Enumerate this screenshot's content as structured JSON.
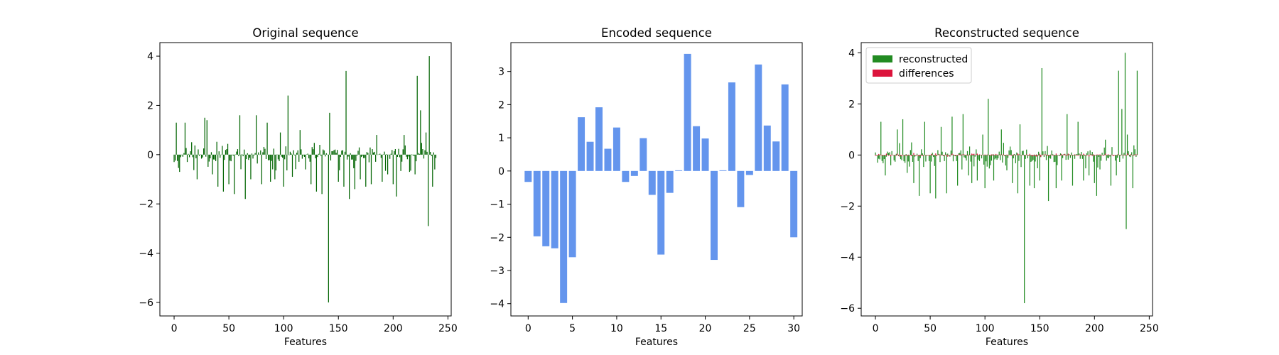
{
  "chart_data": [
    {
      "type": "bar",
      "title": "Original sequence",
      "xlabel": "Features",
      "ylabel": "",
      "xlim": [
        -13,
        253
      ],
      "ylim": [
        -6.55,
        4.55
      ],
      "xticks": [
        0,
        50,
        100,
        150,
        200,
        250
      ],
      "yticks": [
        -6,
        -4,
        -2,
        0,
        2,
        4
      ],
      "bar_width": 0.8,
      "color": "#006400",
      "spikes": [
        [
          0,
          -0.3
        ],
        [
          2,
          1.3
        ],
        [
          5,
          -0.7
        ],
        [
          10,
          1.3
        ],
        [
          21,
          -1.0
        ],
        [
          28,
          1.5
        ],
        [
          30,
          1.4
        ],
        [
          35,
          -0.8
        ],
        [
          40,
          -1.3
        ],
        [
          45,
          -1.5
        ],
        [
          50,
          -1.2
        ],
        [
          55,
          -1.6
        ],
        [
          60,
          1.6
        ],
        [
          65,
          -1.8
        ],
        [
          70,
          -1.0
        ],
        [
          75,
          1.6
        ],
        [
          80,
          -1.2
        ],
        [
          85,
          1.3
        ],
        [
          88,
          -1.1
        ],
        [
          92,
          -1.0
        ],
        [
          97,
          0.9
        ],
        [
          100,
          -1.3
        ],
        [
          104,
          2.4
        ],
        [
          108,
          -0.9
        ],
        [
          115,
          1.0
        ],
        [
          120,
          -0.6
        ],
        [
          125,
          -1.2
        ],
        [
          130,
          -1.5
        ],
        [
          135,
          -1.6
        ],
        [
          141,
          -6.0
        ],
        [
          142,
          1.7
        ],
        [
          150,
          -1.1
        ],
        [
          155,
          -1.3
        ],
        [
          157,
          3.4
        ],
        [
          160,
          -1.8
        ],
        [
          165,
          -1.4
        ],
        [
          170,
          -1.0
        ],
        [
          175,
          -1.3
        ],
        [
          180,
          -1.2
        ],
        [
          185,
          0.8
        ],
        [
          190,
          -1.1
        ],
        [
          195,
          -0.8
        ],
        [
          200,
          -1.2
        ],
        [
          203,
          -1.7
        ],
        [
          210,
          0.8
        ],
        [
          215,
          -0.7
        ],
        [
          220,
          -0.8
        ],
        [
          222,
          3.2
        ],
        [
          225,
          1.8
        ],
        [
          230,
          0.9
        ],
        [
          232,
          -2.9
        ],
        [
          233,
          4.0
        ],
        [
          236,
          -1.3
        ],
        [
          238,
          -0.6
        ]
      ]
    },
    {
      "type": "bar",
      "title": "Encoded sequence",
      "xlabel": "Features",
      "ylabel": "",
      "xlim": [
        -1.95,
        30.95
      ],
      "ylim": [
        -4.37,
        3.87
      ],
      "xticks": [
        0,
        5,
        10,
        15,
        20,
        25,
        30
      ],
      "yticks": [
        -4,
        -3,
        -2,
        -1,
        0,
        1,
        2,
        3
      ],
      "bar_width": 0.8,
      "color": "#6495ED",
      "categories": [
        0,
        1,
        2,
        3,
        4,
        5,
        6,
        7,
        8,
        9,
        10,
        11,
        12,
        13,
        14,
        15,
        16,
        17,
        18,
        19,
        20,
        21,
        22,
        23,
        24,
        25,
        26,
        27,
        28,
        29,
        30
      ],
      "values": [
        -0.33,
        -1.97,
        -2.27,
        -2.33,
        -3.98,
        -2.6,
        1.62,
        0.88,
        1.92,
        0.67,
        1.31,
        -0.33,
        -0.15,
        0.99,
        -0.72,
        -2.52,
        -0.66,
        0.02,
        3.53,
        1.35,
        0.98,
        -2.68,
        0.02,
        2.67,
        -1.09,
        -0.12,
        3.21,
        1.37,
        0.89,
        2.61,
        -2.0
      ]
    },
    {
      "type": "bar",
      "title": "Reconstructed sequence",
      "xlabel": "Features",
      "ylabel": "",
      "xlim": [
        -13,
        253
      ],
      "ylim": [
        -6.3,
        4.4
      ],
      "xticks": [
        0,
        50,
        100,
        150,
        200,
        250
      ],
      "yticks": [
        -6,
        -4,
        -2,
        0,
        2,
        4
      ],
      "bar_width": 0.8,
      "legend": "top-left",
      "series": [
        {
          "name": "reconstructed",
          "color": "#228B22",
          "spikes": [
            [
              0,
              0.1
            ],
            [
              2,
              -0.3
            ],
            [
              5,
              1.3
            ],
            [
              9,
              -0.8
            ],
            [
              14,
              -0.4
            ],
            [
              20,
              1.0
            ],
            [
              25,
              1.4
            ],
            [
              29,
              -0.7
            ],
            [
              35,
              -1.1
            ],
            [
              40,
              -1.6
            ],
            [
              45,
              1.3
            ],
            [
              50,
              -1.5
            ],
            [
              55,
              -1.7
            ],
            [
              60,
              1.1
            ],
            [
              65,
              -1.5
            ],
            [
              70,
              1.5
            ],
            [
              75,
              -1.2
            ],
            [
              80,
              1.6
            ],
            [
              85,
              -0.8
            ],
            [
              88,
              -1.1
            ],
            [
              93,
              -1.0
            ],
            [
              98,
              0.8
            ],
            [
              100,
              -1.3
            ],
            [
              103,
              2.2
            ],
            [
              108,
              -1.0
            ],
            [
              115,
              1.0
            ],
            [
              120,
              -0.6
            ],
            [
              125,
              -1.1
            ],
            [
              130,
              -1.5
            ],
            [
              132,
              1.2
            ],
            [
              136,
              -5.8
            ],
            [
              141,
              -1.2
            ],
            [
              145,
              -1.3
            ],
            [
              150,
              -1.0
            ],
            [
              152,
              3.4
            ],
            [
              158,
              -1.8
            ],
            [
              165,
              -1.3
            ],
            [
              170,
              -1.0
            ],
            [
              175,
              1.6
            ],
            [
              180,
              -1.2
            ],
            [
              185,
              1.3
            ],
            [
              190,
              -1.0
            ],
            [
              195,
              -0.8
            ],
            [
              200,
              -1.1
            ],
            [
              202,
              -1.6
            ],
            [
              210,
              0.6
            ],
            [
              215,
              -1.2
            ],
            [
              220,
              -0.8
            ],
            [
              222,
              3.3
            ],
            [
              225,
              1.8
            ],
            [
              228,
              4.0
            ],
            [
              230,
              0.8
            ],
            [
              229,
              -2.9
            ],
            [
              235,
              -1.3
            ],
            [
              239,
              3.3
            ]
          ]
        },
        {
          "name": "differences",
          "color": "#DC143C",
          "spikes": [
            [
              3,
              0.04
            ],
            [
              12,
              -0.03
            ],
            [
              20,
              0.05
            ],
            [
              35,
              0.08
            ],
            [
              40,
              -0.05
            ],
            [
              55,
              0.06
            ],
            [
              70,
              0.05
            ],
            [
              90,
              0.05
            ],
            [
              110,
              0.04
            ],
            [
              130,
              0.06
            ],
            [
              150,
              0.05
            ],
            [
              170,
              0.04
            ],
            [
              190,
              0.05
            ],
            [
              210,
              0.05
            ],
            [
              230,
              0.06
            ]
          ]
        }
      ]
    }
  ]
}
